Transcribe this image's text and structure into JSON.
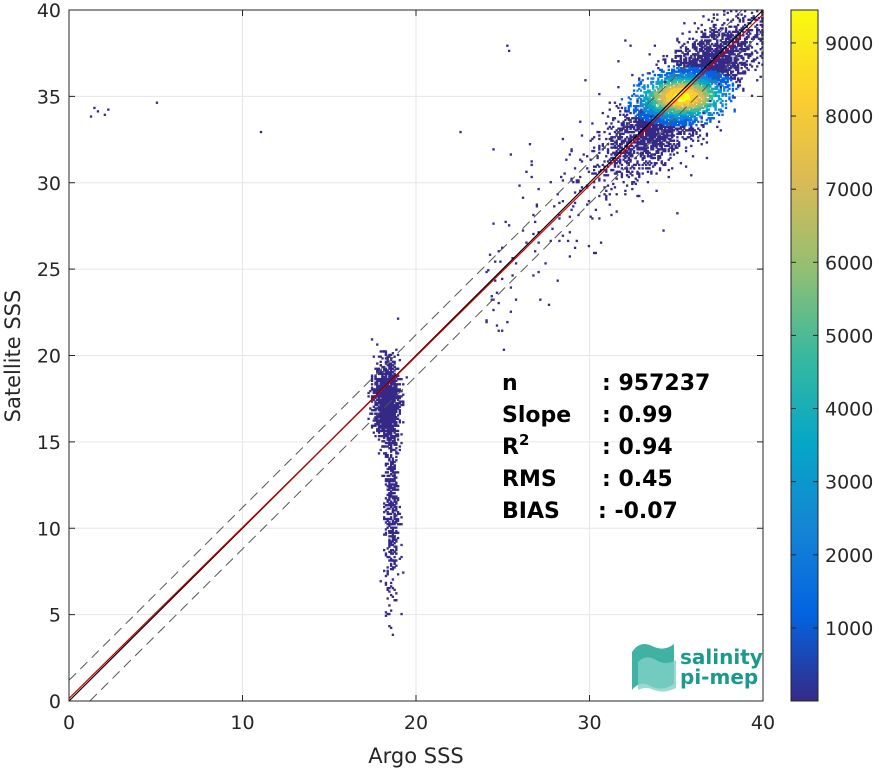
{
  "chart_data": {
    "type": "heatmap",
    "xlabel": "Argo SSS",
    "ylabel": "Satellite SSS",
    "xlim": [
      0,
      40
    ],
    "ylim": [
      0,
      40
    ],
    "xticks": [
      "0",
      "10",
      "20",
      "30",
      "40"
    ],
    "yticks": [
      "0",
      "5",
      "10",
      "15",
      "20",
      "25",
      "30",
      "35",
      "40"
    ],
    "grid": true,
    "colorbar": {
      "range": [
        1,
        9450
      ],
      "ticks": [
        "1000",
        "2000",
        "3000",
        "4000",
        "5000",
        "6000",
        "7000",
        "8000",
        "9000"
      ],
      "colormap": "parula"
    },
    "reference_lines": {
      "identity": {
        "slope": 1,
        "intercept": 0,
        "color": "#000000"
      },
      "fit": {
        "slope": 0.99,
        "intercept": 0.15,
        "color": "#cc0000"
      },
      "bounds": {
        "offset": 1.2,
        "style": "dashed",
        "color": "#555555"
      }
    },
    "stats": [
      {
        "label": "n",
        "value": ": 957237"
      },
      {
        "label": "Slope",
        "value": ": 0.99"
      },
      {
        "label": "R",
        "sup": "2",
        "value": ": 0.94"
      },
      {
        "label": "RMS",
        "value": ": 0.45"
      },
      {
        "label": "BIAS",
        "value": ": -0.07"
      }
    ],
    "density_clusters": [
      {
        "cx": 35.3,
        "cy": 35.0,
        "sx": 2.6,
        "sy": 1.6,
        "along_diag": true,
        "peak": 9400
      },
      {
        "cx": 18.3,
        "cy": 17.4,
        "sx": 0.35,
        "sy": 1.1,
        "along_diag": false,
        "peak": 500
      },
      {
        "cx": 18.6,
        "cy": 11.5,
        "sx": 0.2,
        "sy": 3.0,
        "along_diag": false,
        "peak": 80
      }
    ]
  },
  "logo": {
    "line1": "salinity",
    "line2": "pi-mep"
  }
}
